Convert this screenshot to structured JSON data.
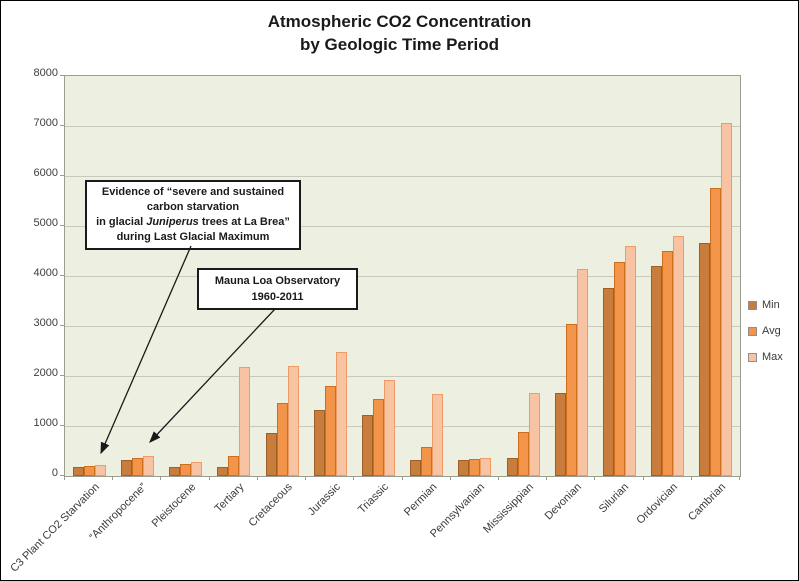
{
  "title": {
    "line1": "Atmospheric CO2 Concentration",
    "line2": "by Geologic Time Period"
  },
  "annotations": {
    "la_brea": {
      "line1": "Evidence of “severe and sustained",
      "line2": "carbon starvation",
      "line3_prefix": "in glacial ",
      "line3_italic": "Juniperus",
      "line3_suffix": " trees at La Brea”",
      "line4": "during Last Glacial Maximum"
    },
    "mauna_loa": {
      "line1": "Mauna Loa Observatory",
      "line2": "1960-2011"
    }
  },
  "colors": {
    "plot_background": "#EDF0E1",
    "gridline": "#C6C9BB",
    "plot_border": "#9A9D8F",
    "min_bar": "#C87D3D",
    "min_bar_border": "#9E6026",
    "avg_bar": "#F2944A",
    "avg_bar_border": "#CE6F1E",
    "max_bar": "#F8C3A3",
    "max_bar_border": "#ED9C66"
  },
  "chart_data": {
    "type": "bar",
    "title": "Atmospheric CO2 Concentration by Geologic Time Period",
    "categories": [
      "C3 Plant CO2 Starvation",
      "“Anthropocene”",
      "Pleistocene",
      "Tertiary",
      "Cretaceous",
      "Jurassic",
      "Triassic",
      "Permian",
      "Pennsylvanian",
      "Mississippian",
      "Devonian",
      "Silurian",
      "Ordovician",
      "Cambrian"
    ],
    "series": [
      {
        "name": "Min",
        "color": "#C87D3D",
        "border": "#9E6026",
        "values": [
          180,
          315,
          170,
          180,
          850,
          1320,
          1210,
          320,
          320,
          355,
          1650,
          3750,
          4200,
          4650
        ]
      },
      {
        "name": "Avg",
        "color": "#F2944A",
        "border": "#CE6F1E",
        "values": [
          200,
          360,
          230,
          400,
          1450,
          1800,
          1540,
          580,
          345,
          870,
          3030,
          4280,
          4500,
          5750
        ]
      },
      {
        "name": "Max",
        "color": "#F8C3A3",
        "border": "#ED9C66",
        "values": [
          215,
          395,
          290,
          2180,
          2190,
          2470,
          1920,
          1640,
          360,
          1650,
          4130,
          4590,
          4790,
          7060
        ]
      }
    ],
    "ylabel": "",
    "xlabel": "",
    "ylim": [
      0,
      8000
    ],
    "ytick_step": 1000,
    "grid": true,
    "legend_position": "right",
    "annotations": [
      "Evidence of “severe and sustained carbon starvation in glacial Juniperus trees at La Brea” during Last Glacial Maximum",
      "Mauna Loa Observatory 1960-2011"
    ]
  }
}
